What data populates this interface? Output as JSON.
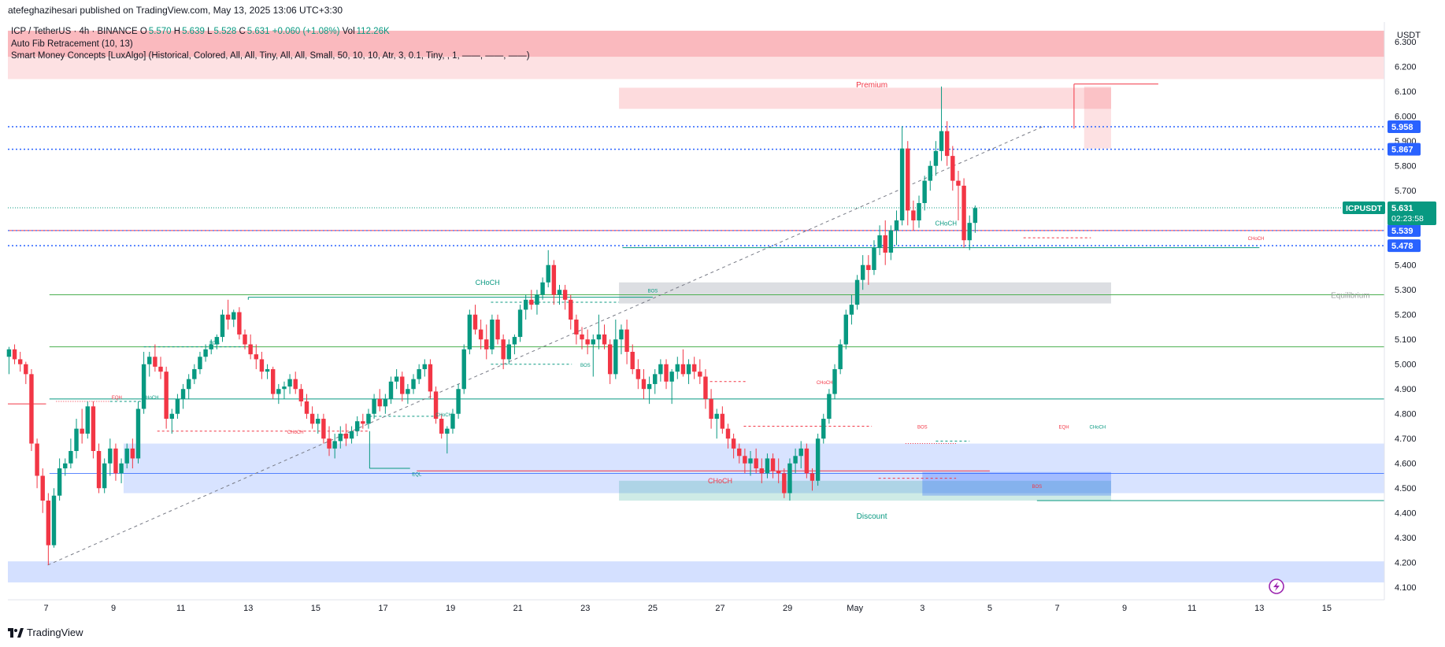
{
  "header": {
    "publisher": "atefeghazihesari published on TradingView.com, May 13, 2025 13:06 UTC+3:30"
  },
  "legend": {
    "symbol": "ICP / TetherUS · 4h · BINANCE",
    "o_label": "O",
    "o": "5.570",
    "h_label": "H",
    "h": "5.639",
    "l_label": "L",
    "l": "5.528",
    "c_label": "C",
    "c": "5.631",
    "change": "+0.060 (+1.08%)",
    "vol_label": "Vol",
    "vol": "112.26K",
    "indicator1": "Auto Fib Retracement (10, 13)",
    "indicator2": "Smart Money Concepts [LuxAlgo] (Historical, Colored, All, All, Tiny, All, All, Small, 50, 10, 10, Atr, 3, 0.1, Tiny, , 1, ——, ——, ——)"
  },
  "colors": {
    "up": "#089981",
    "down": "#f23645",
    "accent": "#2962ff",
    "axis_text": "#131722"
  },
  "chart_data": {
    "type": "candlestick",
    "currency": "USDT",
    "ylim": [
      4.05,
      6.38
    ],
    "y_ticks": [
      "6.300",
      "6.200",
      "6.100",
      "6.000",
      "5.900",
      "5.800",
      "5.700",
      "5.400",
      "5.300",
      "5.200",
      "5.100",
      "5.000",
      "4.900",
      "4.800",
      "4.700",
      "4.600",
      "4.500",
      "4.400",
      "4.300",
      "4.200",
      "4.100"
    ],
    "x_ticks": [
      "7",
      "9",
      "11",
      "13",
      "15",
      "17",
      "19",
      "21",
      "23",
      "25",
      "27",
      "29",
      "May",
      "3",
      "5",
      "7",
      "9",
      "11",
      "13",
      "15"
    ],
    "price_labels": [
      {
        "text": "5.958",
        "value": 5.958
      },
      {
        "text": "5.867",
        "value": 5.867
      },
      {
        "text": "5.539",
        "value": 5.539
      },
      {
        "text": "5.478",
        "value": 5.478
      }
    ],
    "last_price": {
      "symbol": "ICPUSDT",
      "text": "5.631",
      "countdown": "02:23:58",
      "value": 5.631
    },
    "zone_labels": [
      {
        "text": "Premium",
        "day": 24.5,
        "value": 6.13,
        "color": "#f23645"
      },
      {
        "text": "Equilibrium",
        "day": 38.7,
        "value": 5.28,
        "color": "#9aa19f"
      },
      {
        "text": "Discount",
        "day": 24.5,
        "value": 4.39,
        "color": "#089981"
      }
    ],
    "structure_labels": [
      {
        "text": "CHoCH",
        "day": 13.1,
        "value": 5.32,
        "color": "#089981",
        "size": 9
      },
      {
        "text": "CHoCH",
        "day": 20.0,
        "value": 4.52,
        "color": "#f23645",
        "size": 9
      },
      {
        "text": "CHoCH",
        "day": 26.7,
        "value": 5.56,
        "color": "#089981",
        "size": 8
      },
      {
        "text": "BOS",
        "day": 5.0,
        "value": 5.08,
        "color": "#089981",
        "size": 6
      },
      {
        "text": "BOS",
        "day": 16.0,
        "value": 4.99,
        "color": "#089981",
        "size": 6
      },
      {
        "text": "BOS",
        "day": 18.0,
        "value": 5.29,
        "color": "#089981",
        "size": 6
      },
      {
        "text": "BOS",
        "day": 26.0,
        "value": 4.74,
        "color": "#f23645",
        "size": 6
      },
      {
        "text": "BOS",
        "day": 29.4,
        "value": 4.5,
        "color": "#f23645",
        "size": 6
      },
      {
        "text": "CHoCH",
        "day": 3.1,
        "value": 4.86,
        "color": "#089981",
        "size": 6
      },
      {
        "text": "CHoCH",
        "day": 7.4,
        "value": 4.72,
        "color": "#f23645",
        "size": 6
      },
      {
        "text": "CHoCH",
        "day": 11.8,
        "value": 4.79,
        "color": "#089981",
        "size": 6
      },
      {
        "text": "CHoCH",
        "day": 23.1,
        "value": 4.92,
        "color": "#f23645",
        "size": 6
      },
      {
        "text": "CHoCH",
        "day": 31.2,
        "value": 4.74,
        "color": "#089981",
        "size": 6
      },
      {
        "text": "CHoCH",
        "day": 35.9,
        "value": 5.5,
        "color": "#f23645",
        "size": 6
      },
      {
        "text": "EQH",
        "day": 2.1,
        "value": 4.86,
        "color": "#f23645",
        "size": 6
      },
      {
        "text": "EQH",
        "day": 30.2,
        "value": 4.74,
        "color": "#f23645",
        "size": 6
      },
      {
        "text": "EQL",
        "day": 11.0,
        "value": 4.55,
        "color": "#089981",
        "size": 6
      }
    ],
    "candles": [
      [
        5.03,
        5.07,
        4.96,
        5.06
      ],
      [
        5.06,
        5.08,
        5.0,
        5.02
      ],
      [
        5.02,
        5.05,
        4.97,
        5.0
      ],
      [
        5.0,
        5.01,
        4.92,
        4.96
      ],
      [
        4.96,
        4.98,
        4.65,
        4.68
      ],
      [
        4.68,
        4.7,
        4.5,
        4.55
      ],
      [
        4.55,
        4.58,
        4.4,
        4.45
      ],
      [
        4.45,
        4.48,
        4.19,
        4.27
      ],
      [
        4.27,
        4.5,
        4.26,
        4.47
      ],
      [
        4.47,
        4.62,
        4.45,
        4.58
      ],
      [
        4.58,
        4.62,
        4.55,
        4.6
      ],
      [
        4.6,
        4.7,
        4.58,
        4.65
      ],
      [
        4.65,
        4.78,
        4.62,
        4.74
      ],
      [
        4.74,
        4.82,
        4.68,
        4.72
      ],
      [
        4.72,
        4.85,
        4.7,
        4.83
      ],
      [
        4.83,
        4.85,
        4.62,
        4.65
      ],
      [
        4.65,
        4.68,
        4.48,
        4.5
      ],
      [
        4.5,
        4.62,
        4.48,
        4.6
      ],
      [
        4.6,
        4.7,
        4.55,
        4.66
      ],
      [
        4.66,
        4.68,
        4.53,
        4.56
      ],
      [
        4.56,
        4.62,
        4.52,
        4.6
      ],
      [
        4.6,
        4.68,
        4.58,
        4.66
      ],
      [
        4.66,
        4.7,
        4.58,
        4.62
      ],
      [
        4.62,
        4.85,
        4.6,
        4.82
      ],
      [
        4.82,
        5.05,
        4.8,
        5.0
      ],
      [
        5.0,
        5.05,
        4.95,
        5.03
      ],
      [
        5.03,
        5.08,
        4.97,
        4.99
      ],
      [
        4.99,
        5.03,
        4.94,
        4.97
      ],
      [
        4.97,
        4.99,
        4.74,
        4.78
      ],
      [
        4.78,
        4.82,
        4.72,
        4.8
      ],
      [
        4.8,
        4.88,
        4.78,
        4.86
      ],
      [
        4.86,
        4.92,
        4.82,
        4.9
      ],
      [
        4.9,
        4.96,
        4.86,
        4.94
      ],
      [
        4.94,
        5.0,
        4.92,
        4.98
      ],
      [
        4.98,
        5.05,
        4.96,
        5.03
      ],
      [
        5.03,
        5.08,
        5.01,
        5.06
      ],
      [
        5.06,
        5.1,
        5.04,
        5.08
      ],
      [
        5.08,
        5.12,
        5.06,
        5.11
      ],
      [
        5.11,
        5.22,
        5.09,
        5.2
      ],
      [
        5.2,
        5.26,
        5.14,
        5.18
      ],
      [
        5.18,
        5.22,
        5.15,
        5.21
      ],
      [
        5.21,
        5.23,
        5.1,
        5.12
      ],
      [
        5.12,
        5.14,
        5.06,
        5.08
      ],
      [
        5.08,
        5.12,
        5.02,
        5.04
      ],
      [
        5.04,
        5.08,
        4.98,
        5.02
      ],
      [
        5.02,
        5.05,
        4.94,
        4.97
      ],
      [
        4.97,
        5.0,
        4.94,
        4.98
      ],
      [
        4.98,
        4.99,
        4.86,
        4.88
      ],
      [
        4.88,
        4.92,
        4.84,
        4.9
      ],
      [
        4.9,
        4.93,
        4.86,
        4.91
      ],
      [
        4.91,
        4.96,
        4.88,
        4.94
      ],
      [
        4.94,
        4.97,
        4.88,
        4.9
      ],
      [
        4.9,
        4.92,
        4.83,
        4.85
      ],
      [
        4.85,
        4.88,
        4.78,
        4.8
      ],
      [
        4.8,
        4.83,
        4.74,
        4.76
      ],
      [
        4.76,
        4.8,
        4.72,
        4.78
      ],
      [
        4.78,
        4.8,
        4.68,
        4.7
      ],
      [
        4.7,
        4.75,
        4.63,
        4.66
      ],
      [
        4.66,
        4.72,
        4.62,
        4.69
      ],
      [
        4.69,
        4.75,
        4.66,
        4.72
      ],
      [
        4.72,
        4.76,
        4.67,
        4.7
      ],
      [
        4.7,
        4.75,
        4.68,
        4.73
      ],
      [
        4.73,
        4.79,
        4.71,
        4.77
      ],
      [
        4.77,
        4.8,
        4.74,
        4.76
      ],
      [
        4.76,
        4.82,
        4.74,
        4.8
      ],
      [
        4.8,
        4.88,
        4.78,
        4.86
      ],
      [
        4.86,
        4.9,
        4.81,
        4.83
      ],
      [
        4.83,
        4.88,
        4.8,
        4.86
      ],
      [
        4.86,
        4.95,
        4.84,
        4.93
      ],
      [
        4.93,
        4.98,
        4.9,
        4.95
      ],
      [
        4.95,
        4.97,
        4.85,
        4.88
      ],
      [
        4.88,
        4.92,
        4.84,
        4.9
      ],
      [
        4.9,
        4.96,
        4.88,
        4.94
      ],
      [
        4.94,
        5.0,
        4.92,
        4.98
      ],
      [
        4.98,
        5.02,
        4.95,
        5.0
      ],
      [
        5.0,
        5.02,
        4.86,
        4.89
      ],
      [
        4.89,
        4.91,
        4.76,
        4.78
      ],
      [
        4.78,
        4.8,
        4.7,
        4.72
      ],
      [
        4.72,
        4.75,
        4.64,
        4.74
      ],
      [
        4.74,
        4.82,
        4.72,
        4.8
      ],
      [
        4.8,
        4.92,
        4.78,
        4.9
      ],
      [
        4.9,
        5.08,
        4.88,
        5.06
      ],
      [
        5.06,
        5.22,
        5.04,
        5.2
      ],
      [
        5.2,
        5.24,
        5.12,
        5.14
      ],
      [
        5.14,
        5.18,
        5.06,
        5.1
      ],
      [
        5.1,
        5.16,
        5.02,
        5.06
      ],
      [
        5.06,
        5.2,
        5.04,
        5.18
      ],
      [
        5.18,
        5.2,
        5.08,
        5.1
      ],
      [
        5.1,
        5.12,
        4.98,
        5.02
      ],
      [
        5.02,
        5.1,
        5.0,
        5.08
      ],
      [
        5.08,
        5.12,
        5.04,
        5.11
      ],
      [
        5.11,
        5.24,
        5.09,
        5.22
      ],
      [
        5.22,
        5.28,
        5.18,
        5.26
      ],
      [
        5.26,
        5.3,
        5.22,
        5.24
      ],
      [
        5.24,
        5.3,
        5.2,
        5.28
      ],
      [
        5.28,
        5.35,
        5.26,
        5.33
      ],
      [
        5.33,
        5.46,
        5.31,
        5.4
      ],
      [
        5.4,
        5.42,
        5.24,
        5.28
      ],
      [
        5.28,
        5.32,
        5.24,
        5.3
      ],
      [
        5.3,
        5.32,
        5.22,
        5.26
      ],
      [
        5.26,
        5.28,
        5.14,
        5.18
      ],
      [
        5.18,
        5.2,
        5.08,
        5.12
      ],
      [
        5.12,
        5.15,
        5.06,
        5.1
      ],
      [
        5.1,
        5.14,
        5.04,
        5.08
      ],
      [
        5.08,
        5.12,
        4.95,
        5.1
      ],
      [
        5.1,
        5.2,
        5.06,
        5.12
      ],
      [
        5.12,
        5.16,
        5.06,
        5.08
      ],
      [
        5.08,
        5.1,
        4.92,
        4.96
      ],
      [
        4.96,
        5.18,
        4.94,
        5.1
      ],
      [
        5.1,
        5.16,
        5.04,
        5.14
      ],
      [
        5.14,
        5.18,
        5.0,
        5.05
      ],
      [
        5.05,
        5.08,
        4.96,
        4.98
      ],
      [
        4.98,
        5.02,
        4.9,
        4.94
      ],
      [
        4.94,
        4.98,
        4.86,
        4.9
      ],
      [
        4.9,
        4.95,
        4.84,
        4.92
      ],
      [
        4.92,
        4.98,
        4.88,
        4.96
      ],
      [
        4.96,
        5.02,
        4.93,
        5.0
      ],
      [
        5.0,
        5.02,
        4.9,
        4.93
      ],
      [
        4.93,
        4.98,
        4.84,
        4.97
      ],
      [
        4.97,
        5.03,
        4.94,
        5.0
      ],
      [
        5.0,
        5.06,
        4.95,
        4.96
      ],
      [
        4.96,
        5.02,
        4.92,
        5.0
      ],
      [
        5.0,
        5.03,
        4.94,
        4.97
      ],
      [
        4.97,
        5.02,
        4.92,
        4.95
      ],
      [
        4.95,
        4.98,
        4.82,
        4.86
      ],
      [
        4.86,
        4.9,
        4.74,
        4.78
      ],
      [
        4.78,
        4.82,
        4.7,
        4.8
      ],
      [
        4.8,
        4.83,
        4.72,
        4.74
      ],
      [
        4.74,
        4.76,
        4.66,
        4.7
      ],
      [
        4.7,
        4.72,
        4.62,
        4.66
      ],
      [
        4.66,
        4.68,
        4.6,
        4.63
      ],
      [
        4.63,
        4.66,
        4.56,
        4.6
      ],
      [
        4.6,
        4.65,
        4.55,
        4.62
      ],
      [
        4.62,
        4.66,
        4.56,
        4.58
      ],
      [
        4.58,
        4.62,
        4.52,
        4.56
      ],
      [
        4.56,
        4.64,
        4.54,
        4.62
      ],
      [
        4.62,
        4.64,
        4.54,
        4.57
      ],
      [
        4.57,
        4.62,
        4.52,
        4.56
      ],
      [
        4.56,
        4.58,
        4.46,
        4.48
      ],
      [
        4.48,
        4.62,
        4.45,
        4.6
      ],
      [
        4.6,
        4.66,
        4.56,
        4.63
      ],
      [
        4.63,
        4.69,
        4.58,
        4.66
      ],
      [
        4.66,
        4.68,
        4.54,
        4.56
      ],
      [
        4.56,
        4.58,
        4.49,
        4.53
      ],
      [
        4.53,
        4.72,
        4.51,
        4.7
      ],
      [
        4.7,
        4.8,
        4.68,
        4.78
      ],
      [
        4.78,
        4.9,
        4.76,
        4.88
      ],
      [
        4.88,
        5.0,
        4.86,
        4.98
      ],
      [
        4.98,
        5.1,
        4.96,
        5.08
      ],
      [
        5.08,
        5.22,
        5.06,
        5.2
      ],
      [
        5.2,
        5.28,
        5.16,
        5.24
      ],
      [
        5.24,
        5.36,
        5.22,
        5.34
      ],
      [
        5.34,
        5.44,
        5.3,
        5.4
      ],
      [
        5.4,
        5.44,
        5.32,
        5.38
      ],
      [
        5.38,
        5.5,
        5.36,
        5.47
      ],
      [
        5.47,
        5.56,
        5.44,
        5.52
      ],
      [
        5.52,
        5.58,
        5.4,
        5.45
      ],
      [
        5.45,
        5.56,
        5.42,
        5.54
      ],
      [
        5.54,
        5.62,
        5.48,
        5.58
      ],
      [
        5.58,
        5.96,
        5.56,
        5.87
      ],
      [
        5.87,
        5.9,
        5.56,
        5.62
      ],
      [
        5.62,
        5.66,
        5.54,
        5.58
      ],
      [
        5.58,
        5.68,
        5.55,
        5.65
      ],
      [
        5.65,
        5.76,
        5.62,
        5.74
      ],
      [
        5.74,
        5.82,
        5.7,
        5.8
      ],
      [
        5.8,
        5.9,
        5.76,
        5.86
      ],
      [
        5.86,
        6.12,
        5.82,
        5.94
      ],
      [
        5.94,
        5.98,
        5.8,
        5.84
      ],
      [
        5.84,
        5.88,
        5.7,
        5.74
      ],
      [
        5.74,
        5.78,
        5.58,
        5.72
      ],
      [
        5.72,
        5.75,
        5.47,
        5.5
      ],
      [
        5.5,
        5.6,
        5.46,
        5.57
      ],
      [
        5.57,
        5.64,
        5.53,
        5.63
      ]
    ]
  }
}
